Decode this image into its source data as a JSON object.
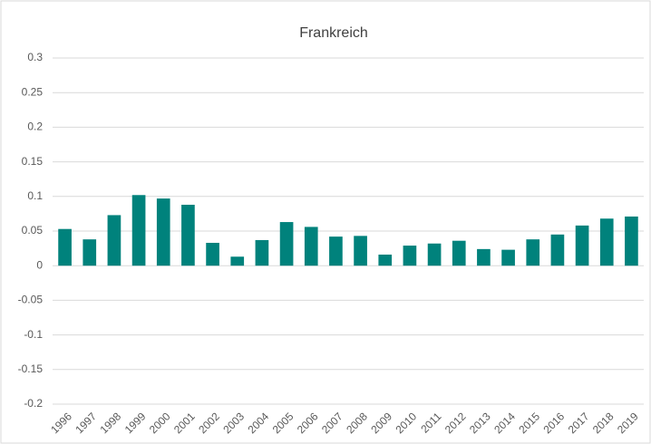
{
  "chart_data": {
    "type": "bar",
    "title": "Frankreich",
    "categories": [
      "1996",
      "1997",
      "1998",
      "1999",
      "2000",
      "2001",
      "2002",
      "2003",
      "2004",
      "2005",
      "2006",
      "2007",
      "2008",
      "2009",
      "2010",
      "2011",
      "2012",
      "2013",
      "2014",
      "2015",
      "2016",
      "2017",
      "2018",
      "2019"
    ],
    "values": [
      0.053,
      0.038,
      0.073,
      0.102,
      0.097,
      0.088,
      0.033,
      0.013,
      0.037,
      0.063,
      0.056,
      0.042,
      0.043,
      0.016,
      0.029,
      0.032,
      0.036,
      0.024,
      0.023,
      0.038,
      0.045,
      0.058,
      0.068,
      0.071
    ],
    "color": "#00827c",
    "ylim": [
      -0.2,
      0.3
    ],
    "yticks": [
      -0.2,
      -0.15,
      -0.1,
      -0.05,
      0,
      0.05,
      0.1,
      0.15,
      0.2,
      0.25,
      0.3
    ],
    "grid": true
  }
}
